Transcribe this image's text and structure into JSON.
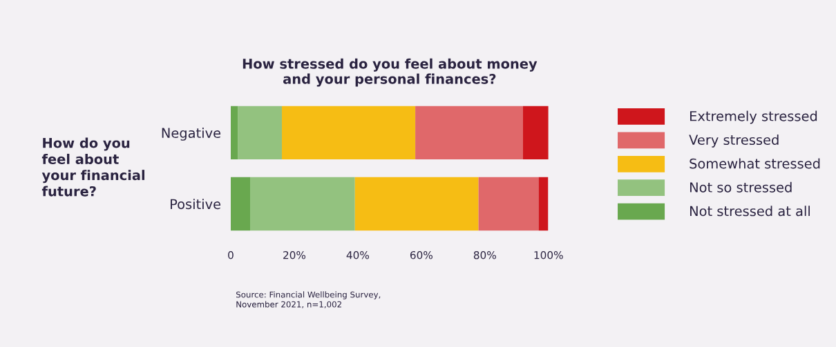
{
  "chart_data": {
    "type": "bar",
    "orientation": "horizontal",
    "stacked": true,
    "title": "How stressed do you feel about money\nand your personal finances?",
    "ylabel": "How do you\nfeel about\nyour financial\nfuture?",
    "categories": [
      "Negative",
      "Positive"
    ],
    "series": [
      {
        "name": "Not stressed at all",
        "color": "#69a84f",
        "values": [
          2.2,
          6.1
        ]
      },
      {
        "name": "Not so stressed",
        "color": "#93c27f",
        "values": [
          13.9,
          33.0
        ]
      },
      {
        "name": "Somewhat stressed",
        "color": "#f6bd14",
        "values": [
          42.0,
          38.9
        ]
      },
      {
        "name": "Very stressed",
        "color": "#e0686a",
        "values": [
          33.9,
          18.9
        ]
      },
      {
        "name": "Extremely stressed",
        "color": "#cf161c",
        "values": [
          8.0,
          3.0
        ]
      }
    ],
    "xlim": [
      0,
      100
    ],
    "xticks": [
      0,
      {
        "value": 20,
        "label": "20%"
      },
      {
        "value": 40,
        "label": "40%"
      },
      {
        "value": 60,
        "label": "60%"
      },
      {
        "value": 80,
        "label": "80%"
      },
      {
        "value": 100,
        "label": "100%"
      }
    ],
    "grid": false,
    "legend": "right",
    "annotations": [
      "Source: Financial Wellbeing Survey,\nNovember 2021, n=1,002"
    ]
  }
}
